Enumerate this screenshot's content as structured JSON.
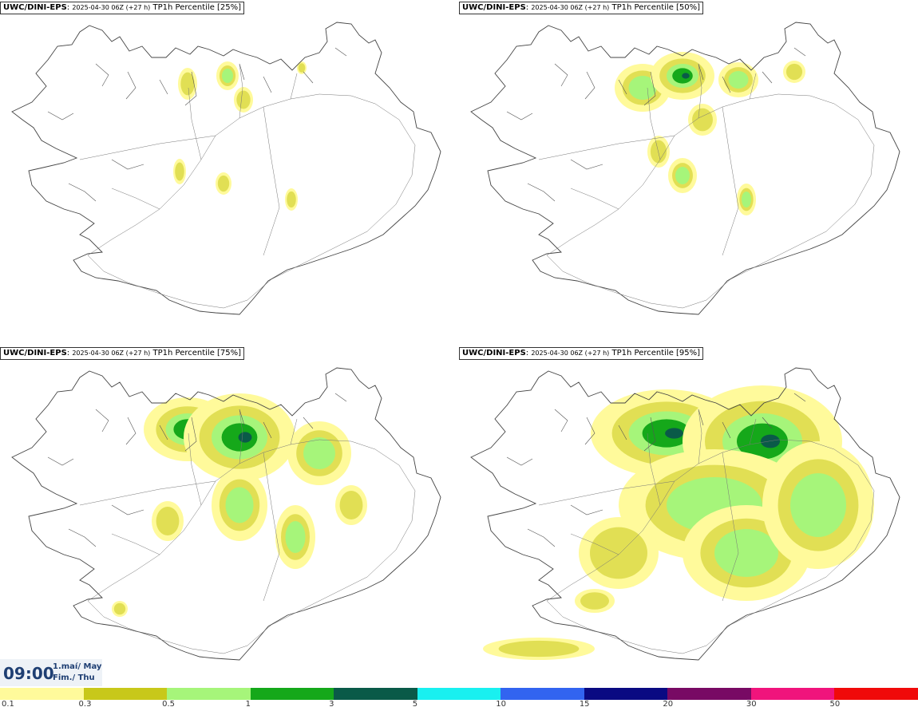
{
  "panels": [
    {
      "model": "UWC/DINI-EPS",
      "run": "2025-04-30 06Z (+27 h)",
      "product": "TP1h Percentile [25%]",
      "intensity": 0
    },
    {
      "model": "UWC/DINI-EPS",
      "run": "2025-04-30 06Z (+27 h)",
      "product": "TP1h Percentile [50%]",
      "intensity": 1
    },
    {
      "model": "UWC/DINI-EPS",
      "run": "2025-04-30 06Z (+27 h)",
      "product": "TP1h Percentile [75%]",
      "intensity": 2
    },
    {
      "model": "UWC/DINI-EPS",
      "run": "2025-04-30 06Z (+27 h)",
      "product": "TP1h Percentile [95%]",
      "intensity": 3
    }
  ],
  "valid_time": {
    "time": "09:00",
    "date": "1.maí/ May",
    "weekday": "Fim./ Thu"
  },
  "legend": {
    "colors": [
      "#fffa9b",
      "#c8c81a",
      "#a6f57a",
      "#15a81a",
      "#0a5a48",
      "#19f0f0",
      "#3264f0",
      "#0a0a82",
      "#780a64",
      "#f0147c",
      "#f00a0a"
    ],
    "ticks": [
      "0.1",
      "0.3",
      "0.5",
      "1",
      "3",
      "5",
      "10",
      "15",
      "20",
      "30",
      "50"
    ]
  }
}
